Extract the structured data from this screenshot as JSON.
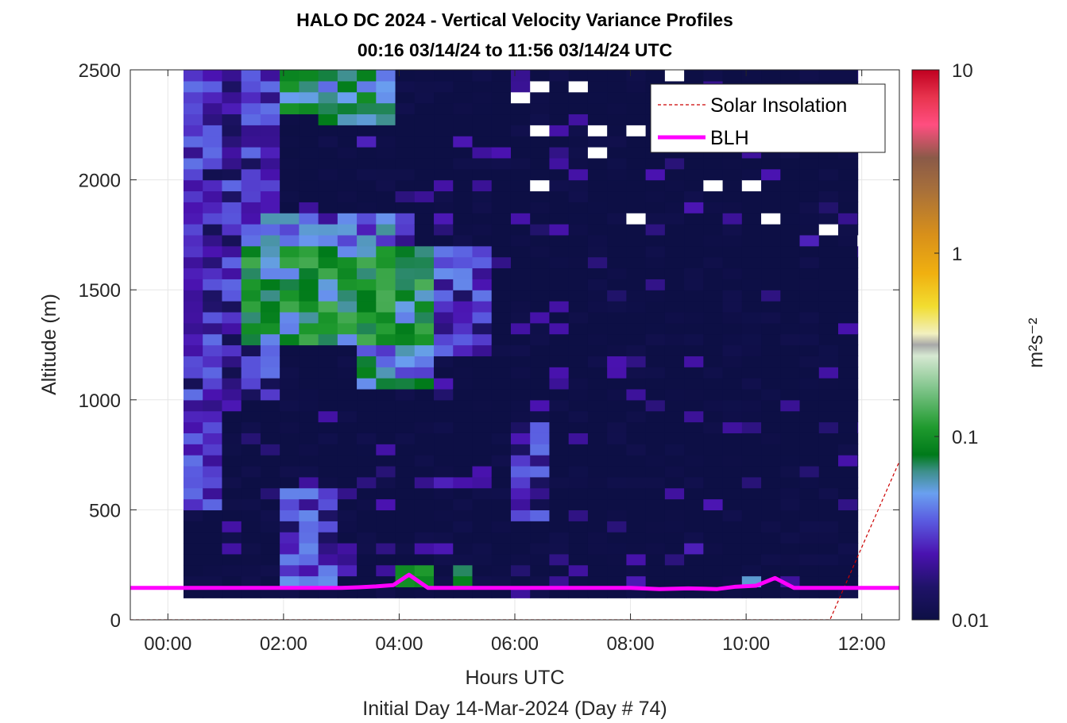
{
  "chart_data": {
    "type": "heatmap",
    "title": "HALO DC 2024 - Vertical Velocity Variance Profiles",
    "subtitle": "00:16 03/14/24 to 11:56 03/14/24  UTC",
    "xlabel": "Hours UTC",
    "xlabel2": "Initial Day 14-Mar-2024 (Day # 74)",
    "ylabel": "Altitude (m)",
    "x_ticks": [
      "00:00",
      "02:00",
      "04:00",
      "06:00",
      "08:00",
      "10:00",
      "12:00"
    ],
    "x_tick_hours": [
      0,
      2,
      4,
      6,
      8,
      10,
      12
    ],
    "xlim": [
      -0.65,
      12.65
    ],
    "y_ticks": [
      "0",
      "500",
      "1000",
      "1500",
      "2000",
      "2500"
    ],
    "y_tick_values": [
      0,
      500,
      1000,
      1500,
      2000,
      2500
    ],
    "ylim": [
      0,
      2500
    ],
    "grid": true,
    "colorbar": {
      "scale": "log",
      "range": [
        0.01,
        10
      ],
      "ticks": [
        "10",
        "1",
        "0.1",
        "0.01"
      ],
      "tick_values": [
        10,
        1,
        0.1,
        0.01
      ],
      "label": "m²s⁻²"
    },
    "data_extent": {
      "x_start": 0.27,
      "x_end": 11.93,
      "y_start": 100,
      "y_end": 2500,
      "dx": 0.333,
      "dy": 50
    },
    "variance_regions_m2s2": [
      {
        "x": [
          0.27,
          1.8
        ],
        "y": [
          1000,
          2500
        ],
        "value": 0.025
      },
      {
        "x": [
          1.8,
          2.6
        ],
        "y": [
          2300,
          2500
        ],
        "value": 0.08
      },
      {
        "x": [
          2.6,
          3.8
        ],
        "y": [
          2250,
          2500
        ],
        "value": 0.07
      },
      {
        "x": [
          1.4,
          4.2
        ],
        "y": [
          1650,
          1850
        ],
        "value": 0.04
      },
      {
        "x": [
          1.4,
          4.5
        ],
        "y": [
          1250,
          1700
        ],
        "value": 0.09
      },
      {
        "x": [
          3.2,
          4.5
        ],
        "y": [
          1050,
          1350
        ],
        "value": 0.06
      },
      {
        "x": [
          4.5,
          5.5
        ],
        "y": [
          1200,
          1700
        ],
        "value": 0.03
      },
      {
        "x": [
          1.8,
          3.0
        ],
        "y": [
          150,
          600
        ],
        "value": 0.03
      },
      {
        "x": [
          3.8,
          4.6
        ],
        "y": [
          150,
          250
        ],
        "value": 0.08
      },
      {
        "x": [
          5.0,
          5.3
        ],
        "y": [
          150,
          250
        ],
        "value": 0.09
      },
      {
        "x": [
          0.27,
          0.9
        ],
        "y": [
          500,
          1000
        ],
        "value": 0.025
      },
      {
        "x": [
          6.0,
          6.6
        ],
        "y": [
          450,
          900
        ],
        "value": 0.025
      },
      {
        "x": [
          10.0,
          10.35
        ],
        "y": [
          150,
          200
        ],
        "value": 0.04
      }
    ],
    "series": [
      {
        "name": "Solar Insolation",
        "style": "dashed",
        "color": "#cc0000",
        "x": [
          -0.65,
          11.45,
          12.65
        ],
        "y": [
          0,
          0,
          720
        ]
      },
      {
        "name": "BLH",
        "style": "solid",
        "color": "#ff00ff",
        "x": [
          -0.65,
          -0.15,
          0.5,
          1.0,
          1.5,
          2.0,
          2.5,
          3.0,
          3.3,
          3.6,
          3.9,
          4.17,
          4.5,
          5.0,
          5.5,
          6.0,
          6.5,
          7.0,
          7.5,
          8.0,
          8.5,
          9.0,
          9.5,
          9.8,
          10.17,
          10.5,
          10.83,
          11.2,
          11.6,
          12.0,
          12.65
        ],
        "y": [
          145,
          145,
          145,
          145,
          145,
          145,
          145,
          145,
          148,
          152,
          158,
          205,
          145,
          145,
          145,
          145,
          145,
          145,
          145,
          145,
          140,
          143,
          140,
          150,
          155,
          190,
          145,
          145,
          145,
          145,
          145
        ]
      }
    ],
    "legend": {
      "placement": "top-right",
      "entries": [
        "Solar Insolation",
        "BLH"
      ]
    }
  }
}
